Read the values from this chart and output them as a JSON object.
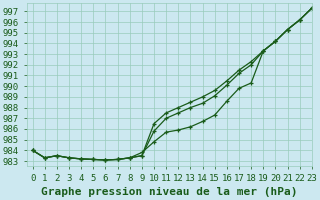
{
  "background_color": "#cce8f0",
  "grid_color": "#99ccbb",
  "line_color": "#1a5c1a",
  "title": "Graphe pression niveau de la mer (hPa)",
  "xlim": [
    -0.5,
    23
  ],
  "ylim": [
    982.5,
    997.8
  ],
  "xticks": [
    0,
    1,
    2,
    3,
    4,
    5,
    6,
    7,
    8,
    9,
    10,
    11,
    12,
    13,
    14,
    15,
    16,
    17,
    18,
    19,
    20,
    21,
    22,
    23
  ],
  "yticks": [
    983,
    984,
    985,
    986,
    987,
    988,
    989,
    990,
    991,
    992,
    993,
    994,
    995,
    996,
    997
  ],
  "line1_x": [
    0,
    1,
    2,
    3,
    4,
    5,
    6,
    7,
    8,
    9,
    10,
    11,
    12,
    13,
    14,
    15,
    16,
    17,
    18,
    19,
    20,
    21,
    22,
    23
  ],
  "line1_y": [
    984.0,
    983.3,
    983.5,
    983.3,
    983.2,
    983.15,
    983.1,
    983.15,
    983.3,
    983.5,
    985.8,
    987.0,
    987.5,
    988.0,
    988.4,
    989.1,
    990.1,
    991.2,
    992.0,
    993.3,
    994.2,
    995.3,
    996.2,
    997.3
  ],
  "line2_x": [
    0,
    1,
    2,
    3,
    4,
    5,
    6,
    7,
    8,
    9,
    10,
    11,
    12,
    13,
    14,
    15,
    16,
    17,
    18,
    19,
    20,
    21,
    22,
    23
  ],
  "line2_y": [
    984.0,
    983.3,
    983.5,
    983.3,
    983.2,
    983.15,
    983.1,
    983.15,
    983.3,
    983.5,
    986.5,
    987.5,
    988.0,
    988.5,
    989.0,
    989.6,
    990.5,
    991.5,
    992.3,
    993.3,
    994.2,
    995.3,
    996.2,
    997.3
  ],
  "line3_x": [
    0,
    1,
    2,
    3,
    4,
    5,
    6,
    7,
    8,
    9,
    10,
    11,
    12,
    13,
    14,
    15,
    16,
    17,
    18,
    19,
    20,
    21,
    22,
    23
  ],
  "line3_y": [
    984.0,
    983.3,
    983.5,
    983.3,
    983.2,
    983.15,
    983.1,
    983.15,
    983.3,
    983.8,
    984.8,
    985.7,
    985.9,
    986.2,
    986.7,
    987.3,
    988.6,
    989.8,
    990.3,
    993.3,
    994.2,
    995.3,
    996.2,
    997.3
  ],
  "title_fontsize": 8,
  "tick_fontsize": 6.5
}
